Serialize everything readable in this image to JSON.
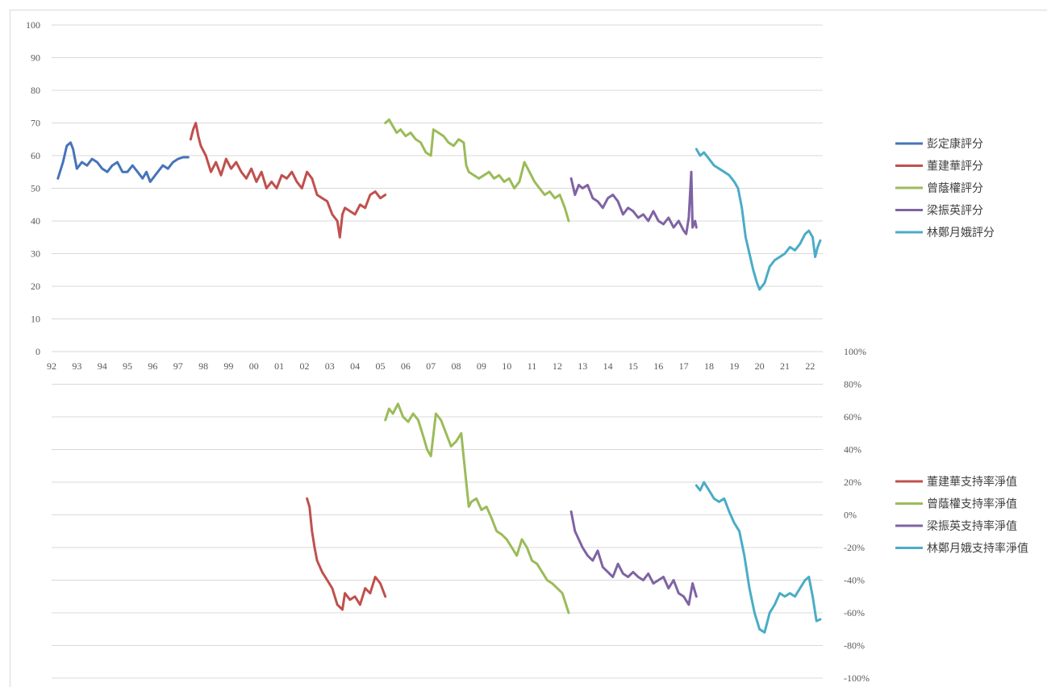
{
  "colors": {
    "blue": "#4674b9",
    "red": "#c0504d",
    "green": "#9bbb59",
    "purple": "#7f63a3",
    "teal": "#4bacc6",
    "grid": "#d9d9d9",
    "text": "#595959"
  },
  "chart_data": [
    {
      "type": "line",
      "title": "",
      "xlabel": "",
      "ylabel": "",
      "ylim": [
        0,
        100
      ],
      "y_ticks": [
        "0",
        "10",
        "20",
        "30",
        "40",
        "50",
        "60",
        "70",
        "80",
        "90",
        "100"
      ],
      "x_ticks": [
        "92",
        "93",
        "94",
        "95",
        "96",
        "97",
        "98",
        "99",
        "00",
        "01",
        "02",
        "03",
        "04",
        "05",
        "06",
        "07",
        "08",
        "09",
        "10",
        "11",
        "12",
        "13",
        "14",
        "15",
        "16",
        "17",
        "18",
        "19",
        "20",
        "21",
        "22"
      ],
      "grid": true,
      "legend_position": "right",
      "series": [
        {
          "name": "彭定康評分",
          "color": "blue",
          "x": [
            1992.25,
            1992.45,
            1992.6,
            1992.75,
            1992.85,
            1993.0,
            1993.2,
            1993.4,
            1993.6,
            1993.8,
            1994.0,
            1994.2,
            1994.4,
            1994.6,
            1994.8,
            1995.0,
            1995.2,
            1995.4,
            1995.6,
            1995.75,
            1995.9,
            1996.0,
            1996.2,
            1996.4,
            1996.6,
            1996.8,
            1997.0,
            1997.2,
            1997.4
          ],
          "values": [
            53,
            58,
            63,
            64,
            62,
            56,
            58,
            57,
            59,
            58,
            56,
            55,
            57,
            58,
            55,
            55,
            57,
            55,
            53,
            55,
            52,
            53,
            55,
            57,
            56,
            58,
            59,
            59.5,
            59.5
          ]
        },
        {
          "name": "董建華評分",
          "color": "red",
          "x": [
            1997.5,
            1997.6,
            1997.7,
            1997.8,
            1997.9,
            1998.1,
            1998.3,
            1998.5,
            1998.7,
            1998.9,
            1999.1,
            1999.3,
            1999.5,
            1999.7,
            1999.9,
            2000.1,
            2000.3,
            2000.5,
            2000.7,
            2000.9,
            2001.1,
            2001.3,
            2001.5,
            2001.7,
            2001.9,
            2002.1,
            2002.3,
            2002.5,
            2002.7,
            2002.9,
            2003.1,
            2003.3,
            2003.4,
            2003.5,
            2003.6,
            2003.8,
            2004.0,
            2004.2,
            2004.4,
            2004.6,
            2004.8,
            2005.0,
            2005.2
          ],
          "values": [
            65,
            68,
            70,
            66,
            63,
            60,
            55,
            58,
            54,
            59,
            56,
            58,
            55,
            53,
            56,
            52,
            55,
            50,
            52,
            50,
            54,
            53,
            55,
            52,
            50,
            55,
            53,
            48,
            47,
            46,
            42,
            40,
            35,
            42,
            44,
            43,
            42,
            45,
            44,
            48,
            49,
            47,
            48
          ]
        },
        {
          "name": "曾蔭權評分",
          "color": "green",
          "x": [
            2005.2,
            2005.35,
            2005.5,
            2005.65,
            2005.8,
            2006.0,
            2006.2,
            2006.4,
            2006.6,
            2006.8,
            2007.0,
            2007.1,
            2007.3,
            2007.5,
            2007.7,
            2007.9,
            2008.1,
            2008.3,
            2008.4,
            2008.5,
            2008.7,
            2008.9,
            2009.1,
            2009.3,
            2009.5,
            2009.7,
            2009.9,
            2010.1,
            2010.3,
            2010.5,
            2010.7,
            2010.9,
            2011.1,
            2011.3,
            2011.5,
            2011.7,
            2011.9,
            2012.1,
            2012.3,
            2012.45
          ],
          "values": [
            70,
            71,
            69,
            67,
            68,
            66,
            67,
            65,
            64,
            61,
            60,
            68,
            67,
            66,
            64,
            63,
            65,
            64,
            57,
            55,
            54,
            53,
            54,
            55,
            53,
            54,
            52,
            53,
            50,
            52,
            58,
            55,
            52,
            50,
            48,
            49,
            47,
            48,
            44,
            40
          ]
        },
        {
          "name": "梁振英評分",
          "color": "purple",
          "x": [
            2012.55,
            2012.7,
            2012.85,
            2013.0,
            2013.2,
            2013.4,
            2013.6,
            2013.8,
            2014.0,
            2014.2,
            2014.4,
            2014.6,
            2014.8,
            2015.0,
            2015.2,
            2015.4,
            2015.6,
            2015.8,
            2016.0,
            2016.2,
            2016.4,
            2016.6,
            2016.8,
            2017.0,
            2017.1,
            2017.2,
            2017.3,
            2017.35,
            2017.45,
            2017.5
          ],
          "values": [
            53,
            48,
            51,
            50,
            51,
            47,
            46,
            44,
            47,
            48,
            46,
            42,
            44,
            43,
            41,
            42,
            40,
            43,
            40,
            39,
            41,
            38,
            40,
            37,
            36,
            41,
            55,
            38,
            40,
            38
          ]
        },
        {
          "name": "林鄭月娥評分",
          "color": "teal",
          "x": [
            2017.5,
            2017.65,
            2017.8,
            2018.0,
            2018.2,
            2018.4,
            2018.6,
            2018.8,
            2019.0,
            2019.15,
            2019.3,
            2019.45,
            2019.6,
            2019.75,
            2019.9,
            2020.0,
            2020.2,
            2020.4,
            2020.6,
            2020.8,
            2021.0,
            2021.2,
            2021.4,
            2021.6,
            2021.8,
            2021.95,
            2022.1,
            2022.2,
            2022.3,
            2022.4
          ],
          "values": [
            62,
            60,
            61,
            59,
            57,
            56,
            55,
            54,
            52,
            50,
            44,
            35,
            30,
            25,
            21,
            19,
            21,
            26,
            28,
            29,
            30,
            32,
            31,
            33,
            36,
            37,
            35,
            29,
            32,
            34
          ]
        }
      ]
    },
    {
      "type": "line",
      "title": "",
      "xlabel": "",
      "ylabel": "",
      "ylim": [
        -100,
        100
      ],
      "y_ticks": [
        "-100%",
        "-80%",
        "-60%",
        "-40%",
        "-20%",
        "0%",
        "20%",
        "40%",
        "60%",
        "80%",
        "100%"
      ],
      "grid": true,
      "legend_position": "right",
      "series": [
        {
          "name": "董建華支持率淨值",
          "color": "red",
          "x": [
            2002.1,
            2002.2,
            2002.3,
            2002.4,
            2002.5,
            2002.7,
            2002.9,
            2003.1,
            2003.3,
            2003.5,
            2003.6,
            2003.8,
            2004.0,
            2004.2,
            2004.4,
            2004.6,
            2004.8,
            2005.0,
            2005.2
          ],
          "values": [
            10,
            5,
            -10,
            -20,
            -28,
            -35,
            -40,
            -45,
            -55,
            -58,
            -48,
            -52,
            -50,
            -55,
            -45,
            -48,
            -38,
            -42,
            -50
          ]
        },
        {
          "name": "曾蔭權支持率淨值",
          "color": "green",
          "x": [
            2005.2,
            2005.35,
            2005.5,
            2005.7,
            2005.9,
            2006.1,
            2006.3,
            2006.5,
            2006.7,
            2006.85,
            2007.0,
            2007.2,
            2007.4,
            2007.6,
            2007.8,
            2008.0,
            2008.2,
            2008.4,
            2008.5,
            2008.6,
            2008.8,
            2009.0,
            2009.2,
            2009.4,
            2009.6,
            2009.8,
            2010.0,
            2010.2,
            2010.4,
            2010.6,
            2010.8,
            2011.0,
            2011.2,
            2011.4,
            2011.6,
            2011.8,
            2012.0,
            2012.2,
            2012.45
          ],
          "values": [
            58,
            65,
            62,
            68,
            60,
            57,
            62,
            58,
            48,
            40,
            36,
            62,
            58,
            50,
            42,
            45,
            50,
            20,
            5,
            8,
            10,
            3,
            5,
            -2,
            -10,
            -12,
            -15,
            -20,
            -25,
            -15,
            -20,
            -28,
            -30,
            -35,
            -40,
            -42,
            -45,
            -48,
            -60
          ]
        },
        {
          "name": "梁振英支持率淨值",
          "color": "purple",
          "x": [
            2012.55,
            2012.7,
            2012.85,
            2013.0,
            2013.2,
            2013.4,
            2013.6,
            2013.8,
            2014.0,
            2014.2,
            2014.4,
            2014.6,
            2014.8,
            2015.0,
            2015.2,
            2015.4,
            2015.6,
            2015.8,
            2016.0,
            2016.2,
            2016.4,
            2016.6,
            2016.8,
            2017.0,
            2017.2,
            2017.35,
            2017.5
          ],
          "values": [
            2,
            -10,
            -15,
            -20,
            -25,
            -28,
            -22,
            -32,
            -35,
            -38,
            -30,
            -36,
            -38,
            -35,
            -38,
            -40,
            -36,
            -42,
            -40,
            -38,
            -45,
            -40,
            -48,
            -50,
            -55,
            -42,
            -50
          ]
        },
        {
          "name": "林鄭月娥支持率淨值",
          "color": "teal",
          "x": [
            2017.5,
            2017.65,
            2017.8,
            2018.0,
            2018.2,
            2018.4,
            2018.6,
            2018.8,
            2019.0,
            2019.2,
            2019.4,
            2019.6,
            2019.8,
            2020.0,
            2020.2,
            2020.4,
            2020.6,
            2020.8,
            2021.0,
            2021.2,
            2021.4,
            2021.6,
            2021.8,
            2021.95,
            2022.1,
            2022.25,
            2022.4
          ],
          "values": [
            18,
            15,
            20,
            15,
            10,
            8,
            10,
            2,
            -5,
            -10,
            -25,
            -45,
            -60,
            -70,
            -72,
            -60,
            -55,
            -48,
            -50,
            -48,
            -50,
            -45,
            -40,
            -38,
            -50,
            -65,
            -64
          ]
        }
      ]
    }
  ]
}
